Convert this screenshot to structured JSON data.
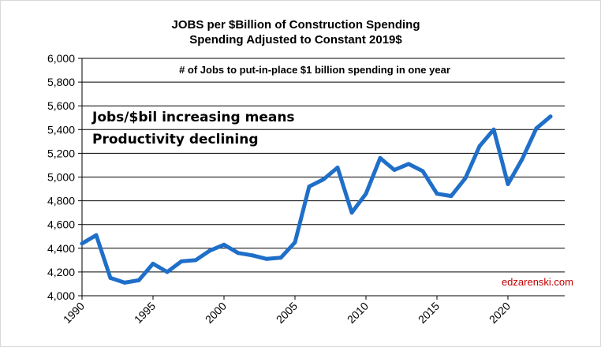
{
  "chart_data": {
    "type": "line",
    "title": "JOBS per $Billion of Construction Spending",
    "subtitle": "Spending Adjusted to Constant 2019$",
    "xlabel": "",
    "ylabel": "",
    "xlim": [
      1990,
      2024
    ],
    "ylim": [
      4000,
      6000
    ],
    "yticks": [
      4000,
      4200,
      4400,
      4600,
      4800,
      5000,
      5200,
      5400,
      5600,
      5800,
      6000
    ],
    "ytick_labels": [
      "4,000",
      "4,200",
      "4,400",
      "4,600",
      "4,800",
      "5,000",
      "5,200",
      "5,400",
      "5,600",
      "5,800",
      "6,000"
    ],
    "xticks": [
      1990,
      1995,
      2000,
      2005,
      2010,
      2015,
      2020
    ],
    "xtick_labels": [
      "1990",
      "1995",
      "2000",
      "2005",
      "2010",
      "2015",
      "2020"
    ],
    "grid": "horizontal",
    "series_color": "#1f6fc9",
    "series": [
      {
        "x": [
          1990,
          1991,
          1992,
          1993,
          1994,
          1995,
          1996,
          1997,
          1998,
          1999,
          2000,
          2001,
          2002,
          2003,
          2004,
          2005,
          2006,
          2007,
          2008,
          2009,
          2010,
          2011,
          2012,
          2013,
          2014,
          2015,
          2016,
          2017,
          2018,
          2019,
          2020,
          2021,
          2022,
          2023
        ],
        "values": [
          4440,
          4510,
          4150,
          4110,
          4130,
          4270,
          4200,
          4290,
          4300,
          4380,
          4430,
          4360,
          4340,
          4310,
          4320,
          4450,
          4920,
          4980,
          5080,
          4700,
          4860,
          5160,
          5060,
          5110,
          5050,
          4860,
          4840,
          4990,
          5260,
          5400,
          4940,
          5150,
          5410,
          5510
        ]
      }
    ],
    "annotations": {
      "subheading": "# of Jobs to put-in-place  $1 billion spending in one year",
      "note_line1": "Jobs/$bil increasing means",
      "note_line2": "Productivity declining",
      "watermark": "edzarenski.com"
    }
  }
}
